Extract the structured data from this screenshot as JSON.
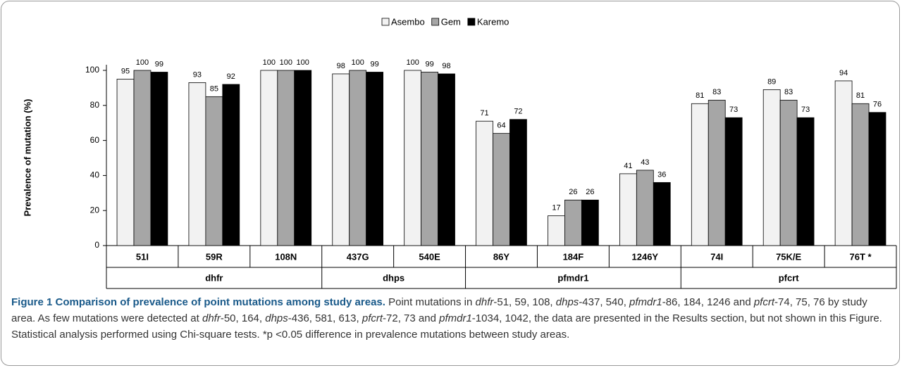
{
  "chart_data": {
    "type": "bar",
    "ylabel": "Prevalence of mutation (%)",
    "categories": [
      "51I",
      "59R",
      "108N",
      "437G",
      "540E",
      "86Y",
      "184F",
      "1246Y",
      "74I",
      "75K/E",
      "76T *"
    ],
    "groups": [
      {
        "name": "dhfr",
        "count": 3
      },
      {
        "name": "dhps",
        "count": 2
      },
      {
        "name": "pfmdr1",
        "count": 3
      },
      {
        "name": "pfcrt",
        "count": 3
      }
    ],
    "series": [
      {
        "name": "Asembo",
        "color": "#f2f2f2",
        "values": [
          95,
          93,
          100,
          98,
          100,
          71,
          17,
          41,
          81,
          89,
          94
        ]
      },
      {
        "name": "Gem",
        "color": "#a6a6a6",
        "values": [
          100,
          85,
          100,
          100,
          99,
          64,
          26,
          43,
          83,
          83,
          81
        ]
      },
      {
        "name": "Karemo",
        "color": "#000000",
        "values": [
          99,
          92,
          100,
          99,
          98,
          72,
          26,
          36,
          73,
          73,
          76
        ]
      }
    ],
    "ylim": [
      0,
      100
    ],
    "yticks": [
      0,
      20,
      40,
      60,
      80,
      100
    ],
    "grid": false,
    "legend": "top"
  },
  "caption": [
    {
      "text": "Figure 1 Comparison of prevalence of point mutations among study areas.",
      "style": "bold"
    },
    {
      "text": " Point mutations in "
    },
    {
      "text": "dhfr",
      "style": "italic"
    },
    {
      "text": "-51, 59, 108, "
    },
    {
      "text": "dhps",
      "style": "italic"
    },
    {
      "text": "-437, 540, "
    },
    {
      "text": "pfmdr1",
      "style": "italic"
    },
    {
      "text": "-86, 184, 1246 and "
    },
    {
      "text": "pfcrt",
      "style": "italic"
    },
    {
      "text": "-74, 75, 76 by study area. As few mutations were detected at "
    },
    {
      "text": "dhfr",
      "style": "italic"
    },
    {
      "text": "-50, 164, "
    },
    {
      "text": "dhps",
      "style": "italic"
    },
    {
      "text": "-436, 581, 613, "
    },
    {
      "text": "pfcrt",
      "style": "italic"
    },
    {
      "text": "-72, 73 and "
    },
    {
      "text": "pfmdr1",
      "style": "italic"
    },
    {
      "text": "-1034, 1042, the data are presented in the Results section, but not shown in this Figure. Statistical analysis performed using Chi-square tests. *p <0.05 difference in prevalence mutations between study areas."
    }
  ]
}
